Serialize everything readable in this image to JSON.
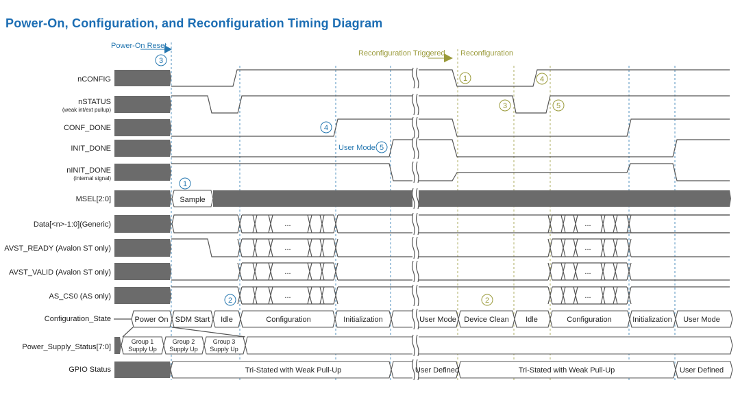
{
  "title": "Power-On, Configuration, and Reconfiguration Timing Diagram",
  "markers": {
    "power_on_reset": "Power-On Reset",
    "reconfig_triggered": "Reconfiguration Triggered",
    "reconfiguration": "Reconfiguration",
    "user_mode": "User Mode"
  },
  "signals": [
    {
      "name": "nCONFIG",
      "note": ""
    },
    {
      "name": "nSTATUS",
      "note": "(weak int/ext pullup)"
    },
    {
      "name": "CONF_DONE",
      "note": ""
    },
    {
      "name": "INIT_DONE",
      "note": ""
    },
    {
      "name": "nINIT_DONE",
      "note": "(internal signal)"
    },
    {
      "name": "MSEL[2:0]",
      "note": ""
    },
    {
      "name": "Data[<n>-1:0](Generic)",
      "note": ""
    },
    {
      "name": "AVST_READY (Avalon ST only)",
      "note": ""
    },
    {
      "name": "AVST_VALID (Avalon ST only)",
      "note": ""
    },
    {
      "name": "AS_CS0 (AS only)",
      "note": ""
    },
    {
      "name": "Configuration_State",
      "note": ""
    },
    {
      "name": "Power_Supply_Status[7:0]",
      "note": ""
    },
    {
      "name": "GPIO Status",
      "note": ""
    }
  ],
  "msel_value": "Sample",
  "bus_ellipsis": "...",
  "config_states": [
    "Power On",
    "SDM Start",
    "Idle",
    "Configuration",
    "Initialization",
    "",
    "User Mode",
    "Device Clean",
    "Idle",
    "Configuration",
    "Initialization",
    "User Mode"
  ],
  "power_supply": [
    {
      "line1": "Group 1",
      "line2": "Supply Up"
    },
    {
      "line1": "Group 2",
      "line2": "Supply Up"
    },
    {
      "line1": "Group 3",
      "line2": "Supply Up"
    }
  ],
  "gpio_states": [
    "Tri-Stated with Weak Pull-Up",
    "User Defined",
    "Tri-Stated with Weak Pull-Up",
    "User Defined"
  ],
  "annotations": {
    "power_on": [
      "3",
      "1",
      "4",
      "5",
      "2"
    ],
    "reconfig": [
      "1",
      "4",
      "3",
      "5",
      "2"
    ]
  },
  "colors": {
    "power_on": "#2577b0",
    "reconfig": "#9a9a3a",
    "block": "#6b6b6b",
    "title": "#1b6db3"
  }
}
